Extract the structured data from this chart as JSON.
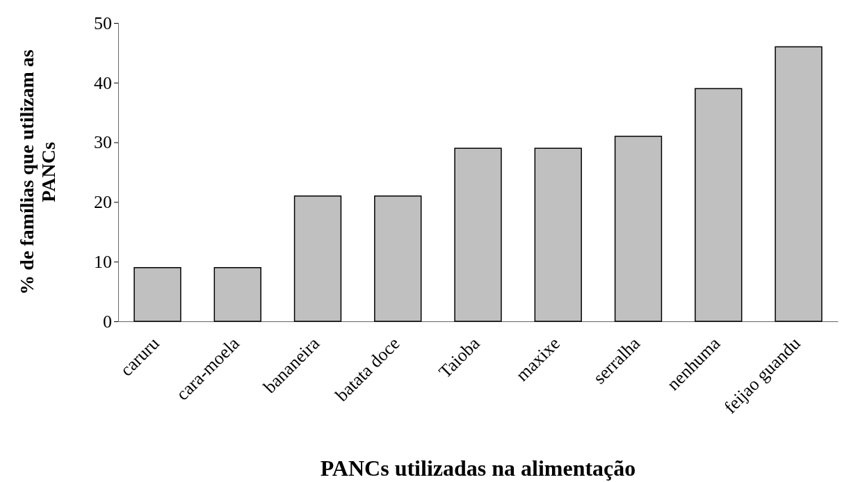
{
  "chart_data": {
    "type": "bar",
    "xlabel": "PANCs utilizadas  na alimentação",
    "ylabel": "% de famílias que utilizam as PANCs",
    "categories": [
      "caruru",
      "cara-moela",
      "bananeira",
      "batata doce",
      "Taioba",
      "maxixe",
      "serralha",
      "nenhuma",
      "feijao guandu"
    ],
    "values": [
      9,
      9,
      21,
      21,
      29,
      29,
      31,
      39,
      46
    ],
    "color": "#c0c0c0",
    "ylim": [
      0,
      50
    ],
    "yticks": [
      0,
      10,
      20,
      30,
      40,
      50
    ],
    "grid": false
  }
}
